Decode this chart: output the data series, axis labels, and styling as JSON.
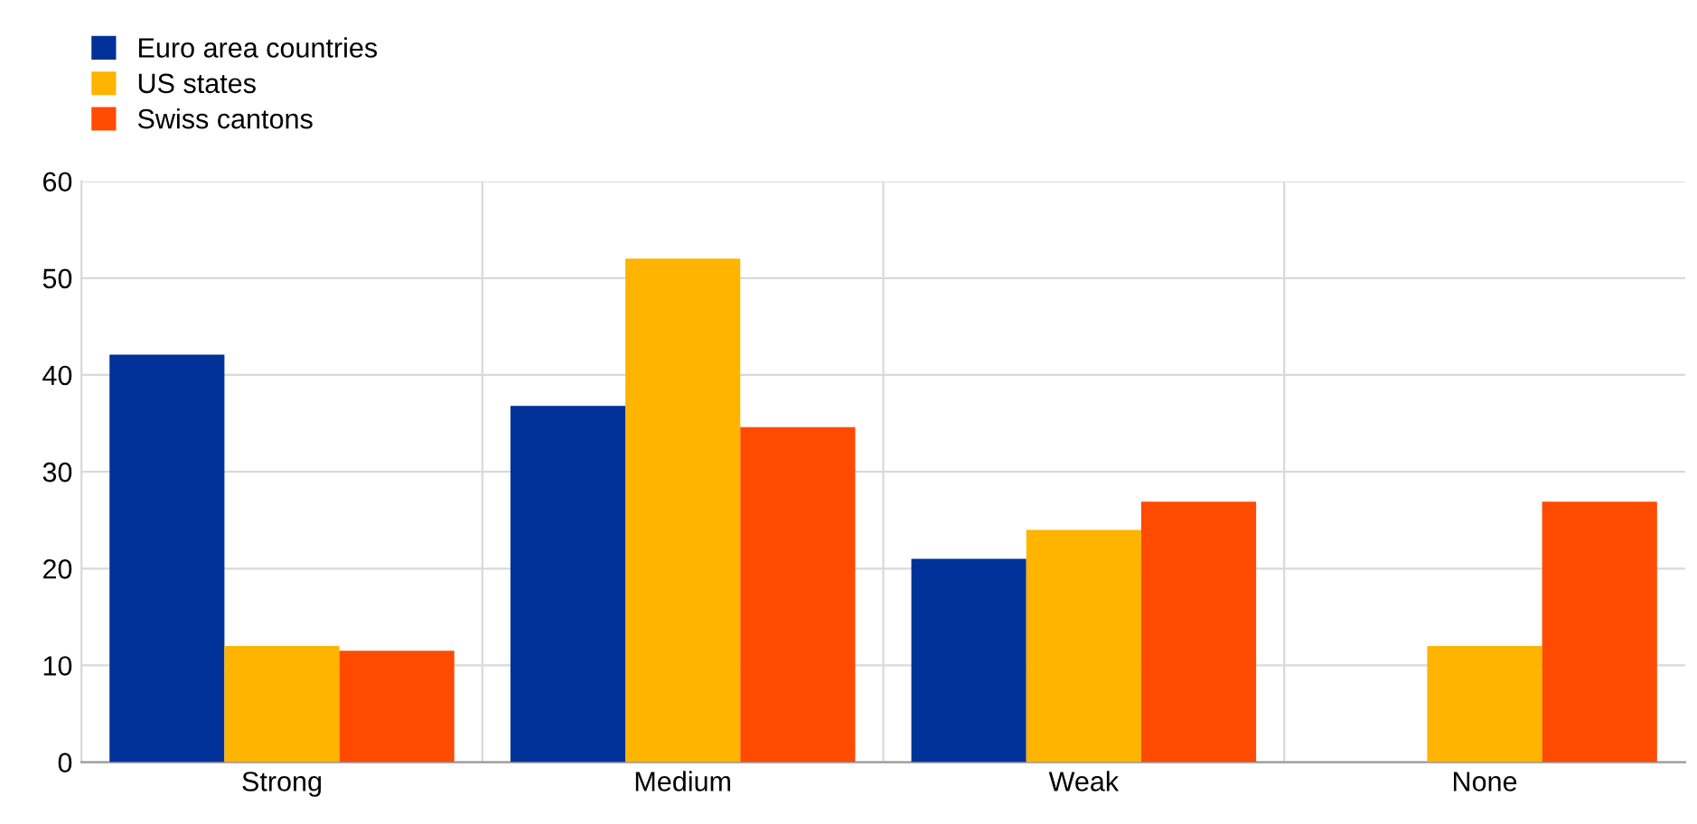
{
  "chart_data": {
    "type": "bar",
    "categories": [
      "Strong",
      "Medium",
      "Weak",
      "None"
    ],
    "series": [
      {
        "name": "Euro area countries",
        "color": "#003299",
        "values": [
          42.1,
          36.8,
          21,
          0
        ]
      },
      {
        "name": "US states",
        "color": "#ffb400",
        "values": [
          12,
          52,
          24,
          12
        ]
      },
      {
        "name": "Swiss cantons",
        "color": "#ff4b00",
        "values": [
          11.5,
          34.6,
          26.9,
          26.9
        ]
      }
    ],
    "ylim": [
      0,
      60
    ],
    "yticks": [
      0,
      10,
      20,
      30,
      40,
      50,
      60
    ],
    "grid": true,
    "legend": "top left"
  }
}
